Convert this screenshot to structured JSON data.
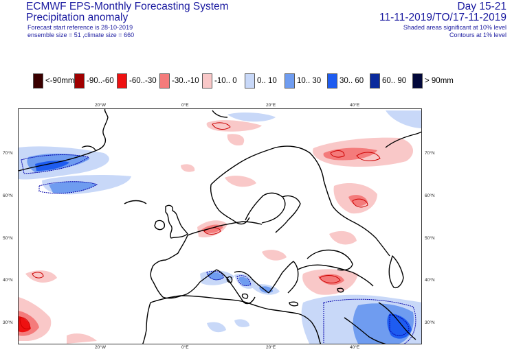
{
  "header": {
    "title": "ECMWF EPS-Monthly Forecasting System",
    "subtitle": "Precipitation anomaly",
    "forecast_ref": "Forecast start reference is 28-10-2019",
    "ensemble": "ensemble size = 51  ,climate size = 660",
    "day_range": "Day 15-21",
    "period": "11-11-2019/TO/17-11-2019",
    "note_shaded": "Shaded areas significant at 10% level",
    "note_contours": "Contours at 1% level"
  },
  "legend": [
    {
      "label": "<-90mm",
      "color": "#3a0000"
    },
    {
      "label": "-90..-60",
      "color": "#a00000"
    },
    {
      "label": "-60..-30",
      "color": "#ee1111"
    },
    {
      "label": "-30..-10",
      "color": "#f47b7b"
    },
    {
      "label": "-10..  0",
      "color": "#f9c8c8"
    },
    {
      "label": "0..  10",
      "color": "#c8d8f8"
    },
    {
      "label": "10..  30",
      "color": "#6f9cf0"
    },
    {
      "label": "30..  60",
      "color": "#1e5cf0"
    },
    {
      "label": "60..  90",
      "color": "#0a2a9c"
    },
    {
      "label": ">  90mm",
      "color": "#02083a"
    }
  ],
  "axes": {
    "top_lon": [
      "20°W",
      "0°E",
      "20°E",
      "40°E"
    ],
    "bottom_lon": [
      "20°W",
      "0°E",
      "20°E",
      "40°E"
    ],
    "left_lat": [
      "70°N",
      "60°N",
      "50°N",
      "40°N",
      "30°N"
    ],
    "right_lat": [
      "70°N",
      "60°N",
      "50°N",
      "40°N",
      "30°N"
    ]
  },
  "map": {
    "region": "Europe / North Atlantic",
    "colors": {
      "coast": "#000000",
      "dry_weak": "#f9c8c8",
      "dry_mid": "#f47b7b",
      "dry_strong": "#ee1111",
      "wet_weak": "#c8d8f8",
      "wet_mid": "#6f9cf0",
      "wet_strong": "#1e5cf0",
      "contour_dry": "#cc0000",
      "contour_wet": "#0000aa"
    }
  }
}
